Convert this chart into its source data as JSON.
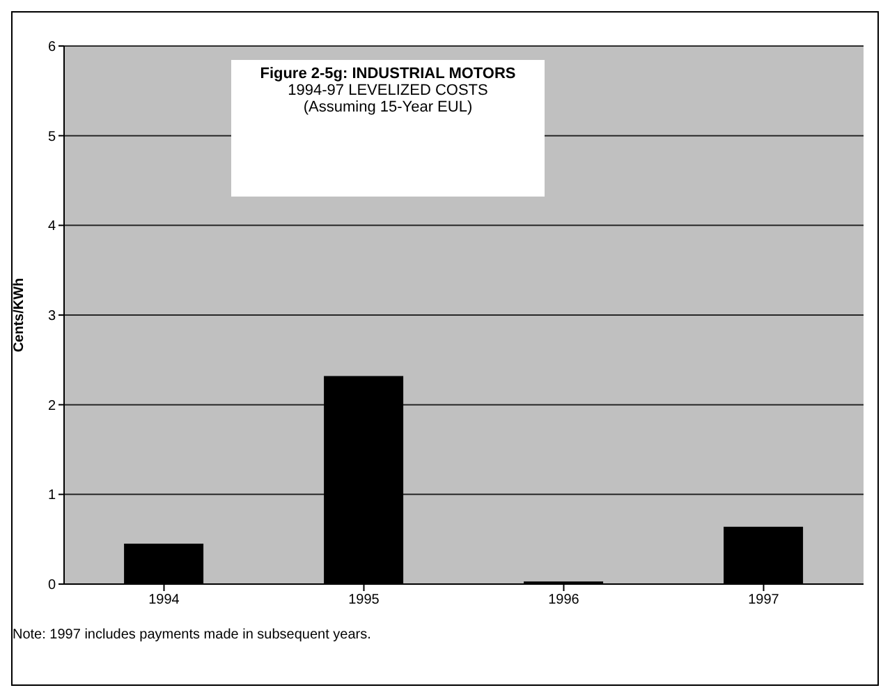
{
  "chart_data": {
    "type": "bar",
    "title": "Figure 2-5g:  INDUSTRIAL MOTORS",
    "subtitle": "1994-97 LEVELIZED COSTS\n(Assuming 15-Year EUL)",
    "ylabel": "Cents/KWh",
    "categories": [
      "1994",
      "1995",
      "1996",
      "1997"
    ],
    "values": [
      0.45,
      2.32,
      0.03,
      0.64
    ],
    "color": "#000000",
    "ylim": [
      0,
      6
    ],
    "yticks": [
      0,
      1,
      2,
      3,
      4,
      5,
      6
    ],
    "grid": "y",
    "annotations": [
      "Note: 1997 includes payments made in subsequent years."
    ]
  }
}
